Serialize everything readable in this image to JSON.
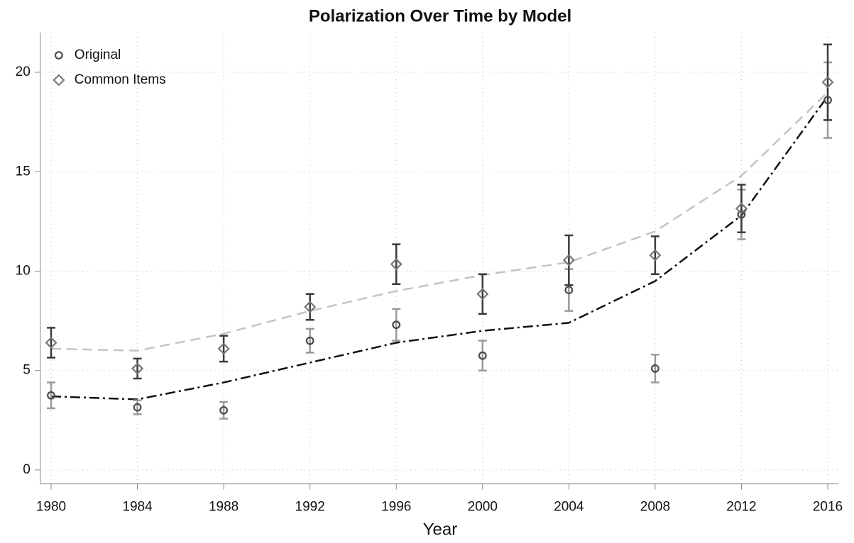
{
  "chart_data": {
    "type": "scatter",
    "title": "Polarization Over Time by Model",
    "x_label": "Year",
    "x": [
      1980,
      1984,
      1988,
      1992,
      1996,
      2000,
      2004,
      2008,
      2012,
      2016
    ],
    "series": [
      {
        "name": "Original",
        "marker": "circle",
        "color": "#4a4a4a",
        "error_color": "#9a9a9a",
        "values": [
          3.75,
          3.15,
          3.0,
          6.5,
          7.3,
          5.75,
          9.05,
          5.1,
          12.85,
          18.6
        ],
        "errors": [
          0.65,
          0.35,
          0.42,
          0.6,
          0.8,
          0.75,
          1.05,
          0.7,
          1.25,
          1.9
        ]
      },
      {
        "name": "Common Items",
        "marker": "diamond",
        "color": "#777777",
        "error_color": "#3a3a3a",
        "values": [
          6.4,
          5.1,
          6.1,
          8.2,
          10.35,
          8.85,
          10.55,
          10.8,
          13.15,
          19.5
        ],
        "errors": [
          0.75,
          0.5,
          0.65,
          0.65,
          1.0,
          1.0,
          1.25,
          0.95,
          1.2,
          1.9
        ]
      }
    ],
    "trend_lines": [
      {
        "color": "#c4c4c4",
        "dash": "14 8",
        "values": [
          6.1,
          6.0,
          6.85,
          8.0,
          9.0,
          9.8,
          10.45,
          12.0,
          14.8,
          19.0
        ]
      },
      {
        "color": "#111111",
        "dash": "14 5 3 5",
        "values": [
          3.7,
          3.55,
          4.4,
          5.4,
          6.4,
          7.0,
          7.4,
          9.5,
          12.8,
          18.8
        ]
      }
    ],
    "xlim": [
      1979.5,
      2016.5
    ],
    "xticks": [
      1980,
      1984,
      1988,
      1992,
      1996,
      2000,
      2004,
      2008,
      2012,
      2016
    ],
    "ylim": [
      -0.7,
      22
    ],
    "yticks": [
      0,
      5,
      10,
      15,
      20
    ],
    "grid": true,
    "legend": "top-left"
  }
}
